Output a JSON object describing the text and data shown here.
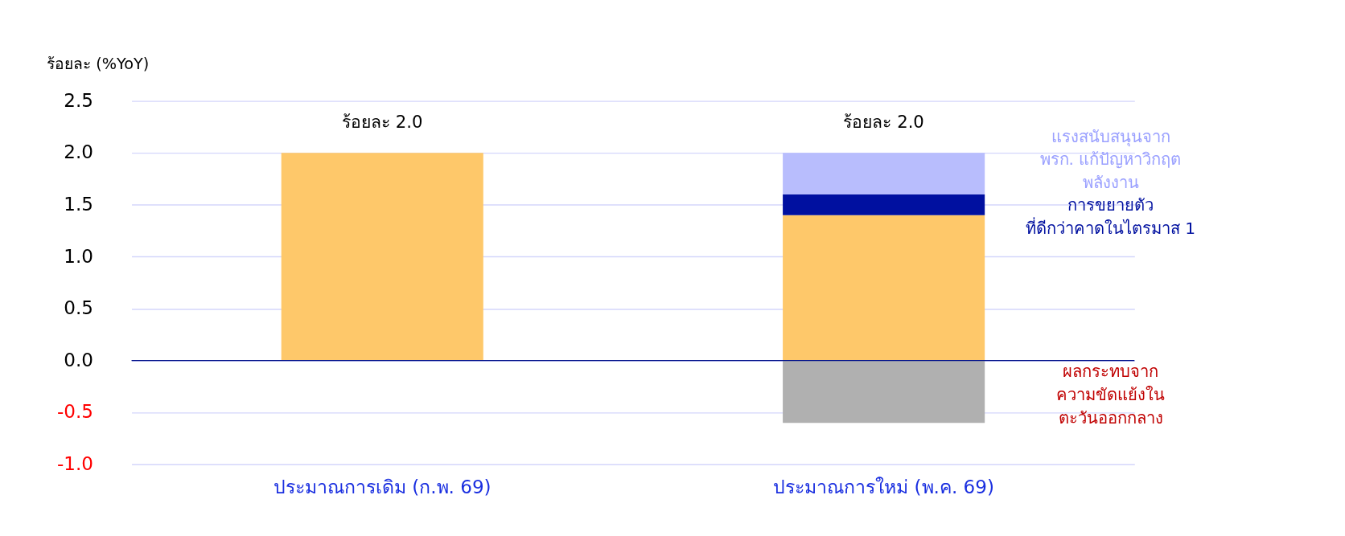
{
  "chart_data": {
    "type": "bar",
    "stacked": true,
    "ylabel": "ร้อยละ (%YoY)",
    "categories": [
      "ประมาณการเดิม (ก.พ. 69)",
      "ประมาณการใหม่ (พ.ค. 69)"
    ],
    "series": [
      {
        "color": "#fec86a",
        "values": [
          2.0,
          1.4
        ]
      },
      {
        "name": "การขยายตัว\nที่ดีกว่าคาดในไตรมาส 1",
        "color": "#0010a0",
        "values": [
          null,
          0.2
        ]
      },
      {
        "name": "แรงสนับสนุนจาก\nพรก. แก้ปัญหาวิกฤต\nพลังงาน",
        "color": "#b8bdfd",
        "values": [
          null,
          0.4
        ]
      },
      {
        "name": "ผลกระทบจาก\nความขัดแย้งใน\nตะวันออกกลาง",
        "color": "#b0b0b0",
        "values": [
          null,
          -0.6
        ]
      }
    ],
    "totals": [
      "ร้อยละ 2.0",
      "ร้อยละ 2.0"
    ],
    "ylim": [
      -1.0,
      2.5
    ],
    "yticks": [
      {
        "value": -1.0,
        "label": "-1.0"
      },
      {
        "value": -0.5,
        "label": "-0.5"
      },
      {
        "value": 0,
        "label": "0.0"
      },
      {
        "value": 0.5,
        "label": "0.5"
      },
      {
        "value": 1.0,
        "label": "1.0"
      },
      {
        "value": 1.5,
        "label": "1.5"
      },
      {
        "value": 2.0,
        "label": "2.0"
      },
      {
        "value": 2.5,
        "label": "2.5"
      }
    ],
    "ref_lines": [
      {
        "axis": "y",
        "value": 0,
        "color": "#00108a"
      }
    ],
    "grid": "y",
    "legend": false
  }
}
